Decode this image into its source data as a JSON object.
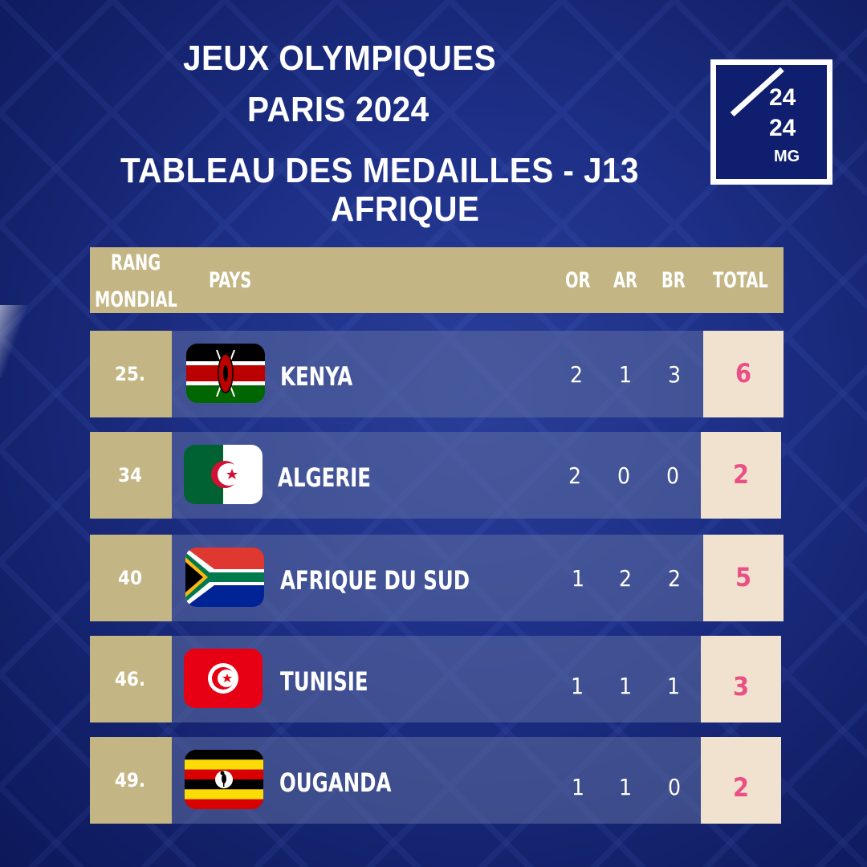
{
  "title": {
    "line1": "JEUX OLYMPIQUES",
    "line2": "PARIS 2024",
    "line3": "TABLEAU DES MEDAILLES - J13",
    "line4": "AFRIQUE"
  },
  "logo": {
    "line1": "24",
    "line2": "24",
    "line3": "MG"
  },
  "table": {
    "headers": {
      "rang": "RANG",
      "mondial": "MONDIAL",
      "pays": "PAYS",
      "or": "OR",
      "ar": "AR",
      "br": "BR",
      "total": "TOTAL"
    },
    "rows": [
      {
        "rank": "25.",
        "country": "KENYA",
        "flag": "kenya-flag",
        "or": "2",
        "ar": "1",
        "br": "3",
        "total": "6"
      },
      {
        "rank": "34",
        "country": "ALGERIE",
        "flag": "algeria-flag",
        "or": "2",
        "ar": "0",
        "br": "0",
        "total": "2"
      },
      {
        "rank": "40",
        "country": "AFRIQUE DU SUD",
        "flag": "south-africa-flag",
        "or": "1",
        "ar": "2",
        "br": "2",
        "total": "5"
      },
      {
        "rank": "46.",
        "country": "TUNISIE",
        "flag": "tunisia-flag",
        "or": "1",
        "ar": "1",
        "br": "1",
        "total": "3"
      },
      {
        "rank": "49.",
        "country": "OUGANDA",
        "flag": "uganda-flag",
        "or": "1",
        "ar": "1",
        "br": "0",
        "total": "2"
      }
    ]
  },
  "colors": {
    "background": "#1d2f86",
    "gold": "#c4b584",
    "total_bg": "#f1e2d0",
    "total_text": "#ea4f86"
  }
}
